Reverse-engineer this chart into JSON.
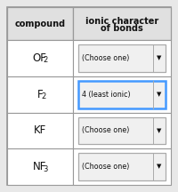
{
  "rows": [
    {
      "compound_main": "OF",
      "compound_sub": "2",
      "dropdown_text": "(Choose one)",
      "highlighted": false
    },
    {
      "compound_main": "F",
      "compound_sub": "2",
      "dropdown_text": "4 (least ionic)",
      "highlighted": true
    },
    {
      "compound_main": "KF",
      "compound_sub": "",
      "dropdown_text": "(Choose one)",
      "highlighted": false
    },
    {
      "compound_main": "NF",
      "compound_sub": "3",
      "dropdown_text": "(Choose one)",
      "highlighted": false
    }
  ],
  "col1_header": "compound",
  "col2_header_line1": "ionic character",
  "col2_header_line2": "of bonds",
  "bg_color": "#ffffff",
  "outer_bg": "#e8e8e8",
  "header_bg": "#e0e0e0",
  "cell_bg": "#ffffff",
  "border_color": "#999999",
  "highlight_border": "#4499ff",
  "dropdown_bg": "#f0f0f0",
  "dropdown_border": "#aaaaaa",
  "text_color": "#111111",
  "figwidth": 2.0,
  "figheight": 2.16,
  "dpi": 100
}
